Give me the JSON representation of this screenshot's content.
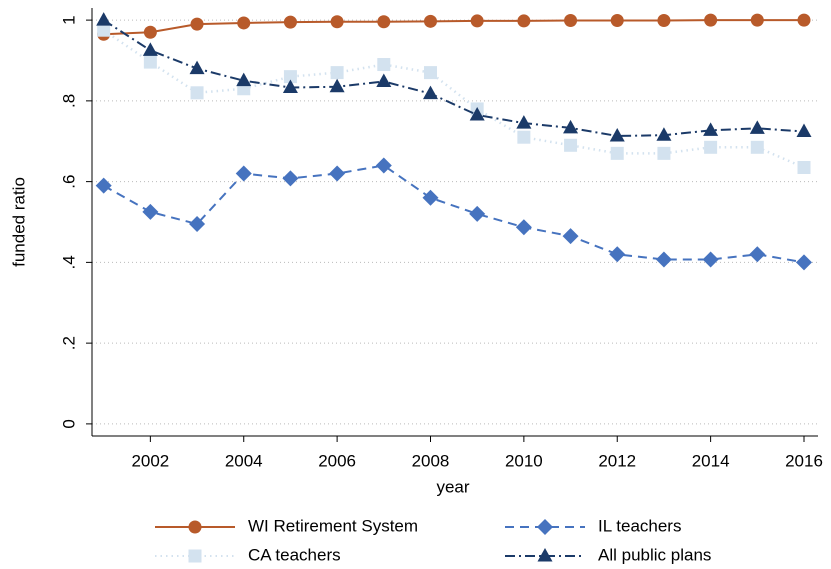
{
  "chart_data": {
    "type": "line",
    "x_label": "year",
    "y_label": "funded ratio",
    "x": [
      2001,
      2002,
      2003,
      2004,
      2005,
      2006,
      2007,
      2008,
      2009,
      2010,
      2011,
      2012,
      2013,
      2014,
      2015,
      2016
    ],
    "xlim": [
      2000.75,
      2016.3
    ],
    "xticks": [
      2002,
      2004,
      2006,
      2008,
      2010,
      2012,
      2014,
      2016
    ],
    "ylim": [
      -0.03,
      1.03
    ],
    "yticks": [
      0,
      {
        "value": 0.2,
        "label": ".2"
      },
      {
        "value": 0.4,
        "label": ".4"
      },
      {
        "value": 0.6,
        "label": ".6"
      },
      {
        "value": 0.8,
        "label": ".8"
      },
      1
    ],
    "grid": true,
    "legend": "bottom",
    "series": [
      {
        "name": "WI Retirement System",
        "color": "#b85a2a",
        "dash": "solid",
        "marker": "circle",
        "values": [
          0.965,
          0.97,
          0.99,
          0.993,
          0.995,
          0.996,
          0.996,
          0.997,
          0.998,
          0.998,
          0.999,
          0.999,
          0.999,
          1.0,
          1.0,
          1.0
        ]
      },
      {
        "name": "CA teachers",
        "color": "#d3e2ef",
        "dash": "dot",
        "marker": "square",
        "values": [
          0.975,
          0.896,
          0.82,
          0.83,
          0.86,
          0.87,
          0.89,
          0.87,
          0.78,
          0.71,
          0.69,
          0.67,
          0.67,
          0.685,
          0.685,
          0.635
        ]
      },
      {
        "name": "IL teachers",
        "color": "#4673bf",
        "dash": "dash",
        "marker": "diamond",
        "values": [
          0.59,
          0.525,
          0.495,
          0.62,
          0.608,
          0.62,
          0.64,
          0.56,
          0.52,
          0.487,
          0.465,
          0.42,
          0.407,
          0.407,
          0.42,
          0.4
        ]
      },
      {
        "name": "All public plans",
        "color": "#1b3a68",
        "dash": "dash-dot",
        "marker": "triangle",
        "values": [
          1.0,
          0.925,
          0.88,
          0.85,
          0.833,
          0.835,
          0.848,
          0.818,
          0.765,
          0.745,
          0.733,
          0.713,
          0.715,
          0.727,
          0.732,
          0.724
        ]
      }
    ]
  }
}
